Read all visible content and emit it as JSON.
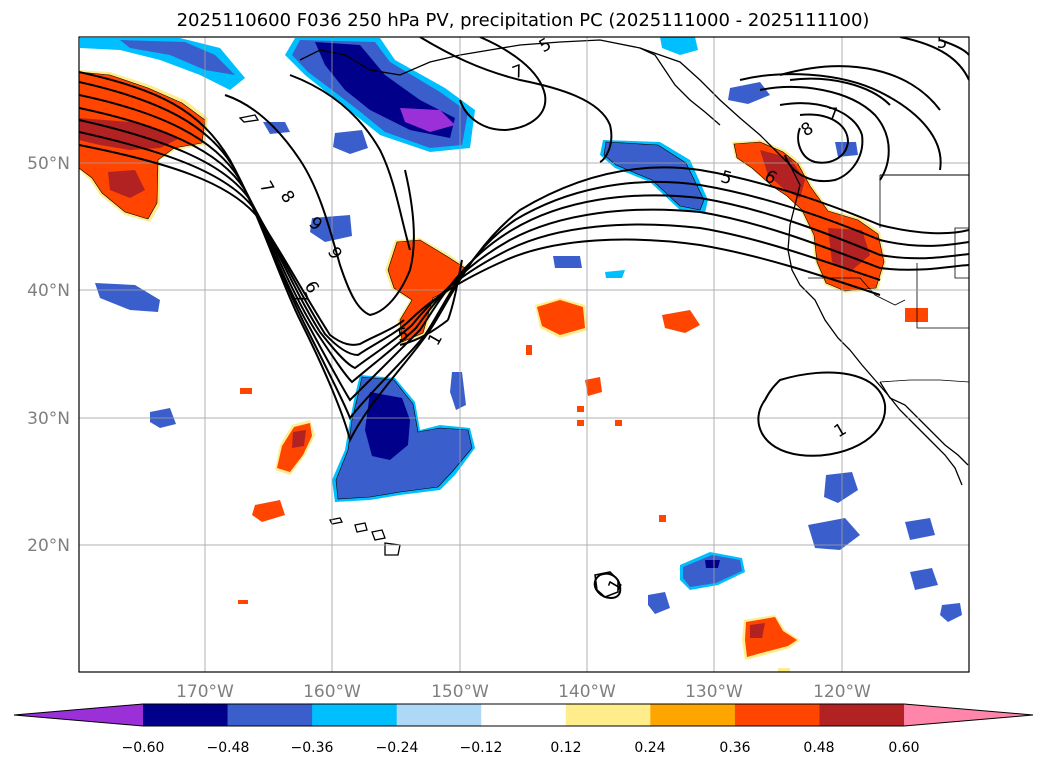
{
  "title": "2025110600 F036 250 hPa PV, precipitation PC (2025111000 - 2025111100)",
  "axes": {
    "lat_labels": [
      "50°N",
      "40°N",
      "30°N",
      "20°N"
    ],
    "lon_labels": [
      "170°W",
      "160°W",
      "150°W",
      "140°W",
      "130°W",
      "120°W"
    ]
  },
  "colorbar": {
    "ticks": [
      "−0.60",
      "−0.48",
      "−0.36",
      "−0.24",
      "−0.12",
      "0.12",
      "0.24",
      "0.36",
      "0.48",
      "0.60"
    ],
    "colors": [
      "#9b30d9",
      "#00008b",
      "#3a5fcd",
      "#00bfff",
      "#add8f6",
      "#ffffff",
      "#ffec8b",
      "#ffa500",
      "#ff4500",
      "#b22222",
      "#ff85aa"
    ]
  },
  "contour_labels": [
    "5",
    "7",
    "7",
    "8",
    "9",
    "9",
    "7",
    "6",
    "5",
    "1",
    "5",
    "8",
    "7",
    "6",
    "5",
    "1",
    "1"
  ],
  "palette": {
    "purple": "#9b30d9",
    "navy": "#00008b",
    "royal": "#3a5fcd",
    "sky": "#00bfff",
    "lightblue": "#add8f6",
    "yellow": "#ffec8b",
    "orange": "#ffa500",
    "redorange": "#ff4500",
    "firebrick": "#b22222",
    "pink": "#ff85aa"
  }
}
